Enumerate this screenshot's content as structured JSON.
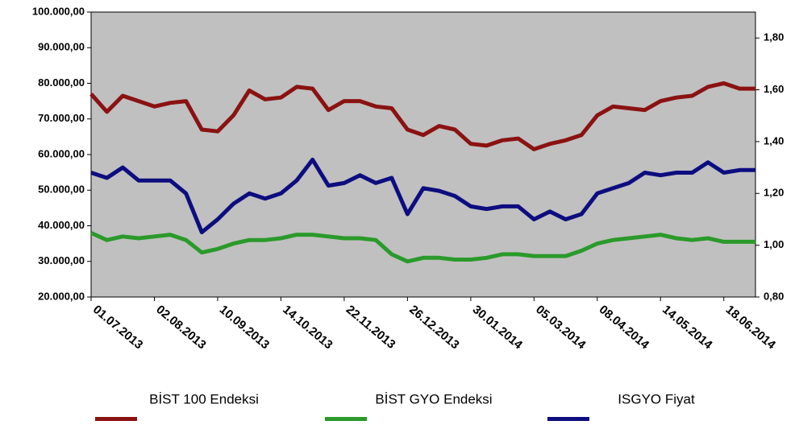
{
  "chart_data": {
    "type": "line",
    "categories": [
      "01.07.2013",
      null,
      null,
      null,
      "02.08.2013",
      null,
      null,
      null,
      "10.09.2013",
      null,
      null,
      null,
      "14.10.2013",
      null,
      null,
      null,
      "22.11.2013",
      null,
      null,
      null,
      "26.12.2013",
      null,
      null,
      null,
      "30.01.2014",
      null,
      null,
      null,
      "05.03.2014",
      null,
      null,
      null,
      "08.04.2014",
      null,
      null,
      null,
      "14.05.2014",
      null,
      null,
      null,
      "18.06.2014",
      null,
      null
    ],
    "series": [
      {
        "name": "BİST 100 Endeksi",
        "color": "#8b1212",
        "values": [
          77000,
          72000,
          76500,
          75000,
          73500,
          74500,
          75000,
          67000,
          66500,
          71000,
          78000,
          75500,
          76000,
          79000,
          78500,
          72500,
          75000,
          75000,
          73500,
          73000,
          67000,
          65500,
          68000,
          67000,
          63000,
          62500,
          64000,
          64500,
          61500,
          63000,
          64000,
          65500,
          71000,
          73500,
          73000,
          72500,
          75000,
          76000,
          76500,
          79000,
          80000,
          78500,
          78500
        ]
      },
      {
        "name": "BİST GYO Endeksi",
        "color": "#2a9a2a",
        "values": [
          38000,
          36000,
          37000,
          36500,
          37000,
          37500,
          36000,
          32500,
          33500,
          35000,
          36000,
          36000,
          36500,
          37500,
          37500,
          37000,
          36500,
          36500,
          36000,
          32000,
          30000,
          31000,
          31000,
          30500,
          30500,
          31000,
          32000,
          32000,
          31500,
          31500,
          31500,
          33000,
          35000,
          36000,
          36500,
          37000,
          37500,
          36500,
          36000,
          36500,
          35500,
          35500,
          35500
        ]
      },
      {
        "name": "ISGYO Fiyat",
        "color": "#0d0d80",
        "axis": "y2",
        "values": [
          1.28,
          1.26,
          1.3,
          1.25,
          1.25,
          1.25,
          1.2,
          1.05,
          1.1,
          1.16,
          1.2,
          1.18,
          1.2,
          1.25,
          1.33,
          1.23,
          1.24,
          1.27,
          1.24,
          1.26,
          1.12,
          1.22,
          1.21,
          1.19,
          1.15,
          1.14,
          1.15,
          1.15,
          1.1,
          1.13,
          1.1,
          1.12,
          1.2,
          1.22,
          1.24,
          1.28,
          1.27,
          1.28,
          1.28,
          1.32,
          1.28,
          1.29,
          1.29
        ]
      }
    ],
    "ylim": [
      20000,
      100000
    ],
    "yticks": [
      {
        "value": 20000,
        "label": "20.000,00"
      },
      {
        "value": 30000,
        "label": "30.000,00"
      },
      {
        "value": 40000,
        "label": "40.000,00"
      },
      {
        "value": 50000,
        "label": "50.000,00"
      },
      {
        "value": 60000,
        "label": "60.000,00"
      },
      {
        "value": 70000,
        "label": "70.000,00"
      },
      {
        "value": 80000,
        "label": "80.000,00"
      },
      {
        "value": 90000,
        "label": "90.000,00"
      },
      {
        "value": 100000,
        "label": "100.000,00"
      }
    ],
    "y2lim": [
      0.8,
      1.9
    ],
    "y2ticks": [
      {
        "value": 0.8,
        "label": "0,80"
      },
      {
        "value": 1.0,
        "label": "1,00"
      },
      {
        "value": 1.2,
        "label": "1,20"
      },
      {
        "value": 1.4,
        "label": "1,40"
      },
      {
        "value": 1.6,
        "label": "1,60"
      },
      {
        "value": 1.8,
        "label": "1,80"
      }
    ],
    "plot_background": "#c0c0c0",
    "legend": "bottom"
  }
}
